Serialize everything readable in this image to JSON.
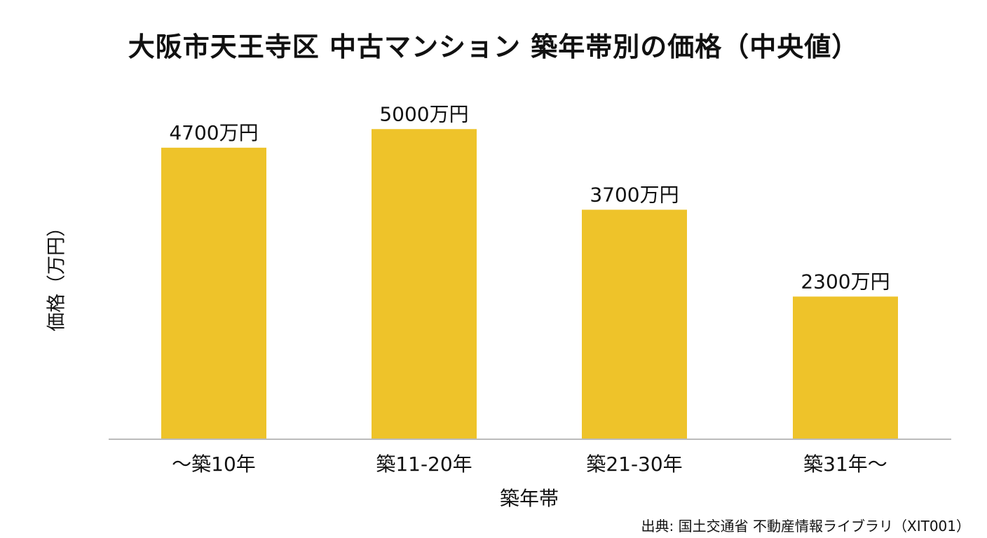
{
  "chart_data": {
    "type": "bar",
    "title": "大阪市天王寺区 中古マンション 築年帯別の価格（中央値）",
    "xlabel": "築年帯",
    "ylabel": "価格（万円）",
    "categories": [
      "〜築10年",
      "築11-20年",
      "築21-30年",
      "築31年〜"
    ],
    "values": [
      4700,
      5000,
      3700,
      2300
    ],
    "value_labels": [
      "4700万円",
      "5000万円",
      "3700万円",
      "2300万円"
    ],
    "ylim": [
      0,
      5500
    ],
    "grid": false,
    "bar_color": "#EEC32A",
    "axis_color": "#BBBBBB"
  },
  "source": "出典: 国土交通省 不動産情報ライブラリ（XIT001）"
}
